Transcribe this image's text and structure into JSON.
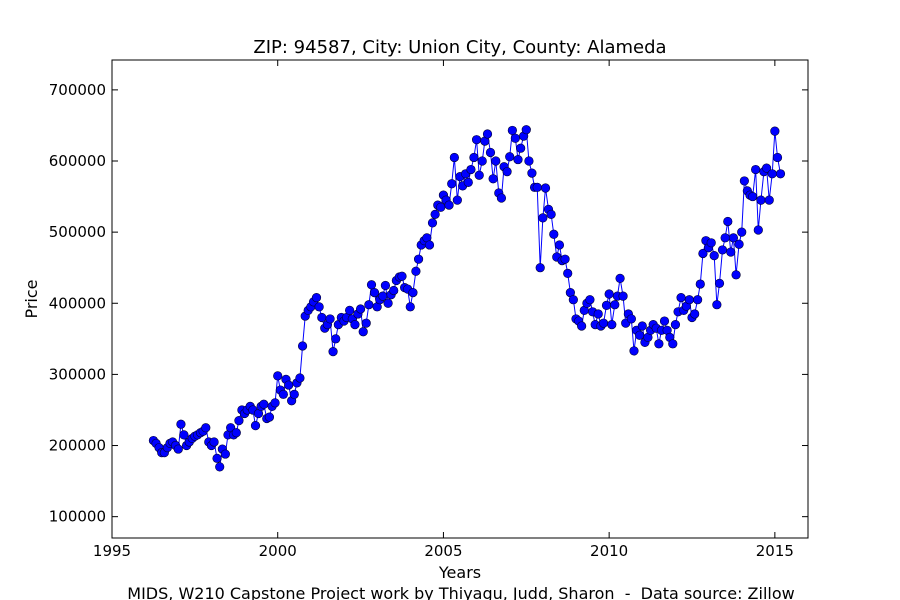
{
  "chart_data": {
    "type": "line",
    "title": "ZIP: 94587, City: Union City, County: Alameda",
    "xlabel": "Years",
    "ylabel": "Price",
    "footer": "MIDS, W210 Capstone Project work by Thiyagu, Judd, Sharon  -  Data source: Zillow",
    "xlim": [
      1995,
      2016
    ],
    "ylim": [
      70000,
      742000
    ],
    "xticks": [
      1995,
      2000,
      2005,
      2010,
      2015
    ],
    "yticks": [
      100000,
      200000,
      300000,
      400000,
      500000,
      600000,
      700000
    ],
    "x": [
      1996.25,
      1996.33,
      1996.42,
      1996.5,
      1996.58,
      1996.67,
      1996.75,
      1996.83,
      1996.92,
      1997.0,
      1997.08,
      1997.17,
      1997.25,
      1997.33,
      1997.42,
      1997.5,
      1997.58,
      1997.67,
      1997.75,
      1997.83,
      1997.92,
      1998.0,
      1998.08,
      1998.17,
      1998.25,
      1998.33,
      1998.42,
      1998.5,
      1998.58,
      1998.67,
      1998.75,
      1998.83,
      1998.92,
      1999.0,
      1999.08,
      1999.17,
      1999.25,
      1999.33,
      1999.42,
      1999.5,
      1999.58,
      1999.67,
      1999.75,
      1999.83,
      1999.92,
      2000.0,
      2000.08,
      2000.17,
      2000.25,
      2000.33,
      2000.42,
      2000.5,
      2000.58,
      2000.67,
      2000.75,
      2000.83,
      2000.92,
      2001.0,
      2001.08,
      2001.17,
      2001.25,
      2001.33,
      2001.42,
      2001.5,
      2001.58,
      2001.67,
      2001.75,
      2001.83,
      2001.92,
      2002.0,
      2002.08,
      2002.17,
      2002.25,
      2002.33,
      2002.42,
      2002.5,
      2002.58,
      2002.67,
      2002.75,
      2002.83,
      2002.92,
      2003.0,
      2003.08,
      2003.17,
      2003.25,
      2003.33,
      2003.42,
      2003.5,
      2003.58,
      2003.67,
      2003.75,
      2003.83,
      2003.92,
      2004.0,
      2004.08,
      2004.17,
      2004.25,
      2004.33,
      2004.42,
      2004.5,
      2004.58,
      2004.67,
      2004.75,
      2004.83,
      2004.92,
      2005.0,
      2005.08,
      2005.17,
      2005.25,
      2005.33,
      2005.42,
      2005.5,
      2005.58,
      2005.67,
      2005.75,
      2005.83,
      2005.92,
      2006.0,
      2006.08,
      2006.17,
      2006.25,
      2006.33,
      2006.42,
      2006.5,
      2006.58,
      2006.67,
      2006.75,
      2006.83,
      2006.92,
      2007.0,
      2007.08,
      2007.17,
      2007.25,
      2007.33,
      2007.42,
      2007.5,
      2007.58,
      2007.67,
      2007.75,
      2007.83,
      2007.92,
      2008.0,
      2008.08,
      2008.17,
      2008.25,
      2008.33,
      2008.42,
      2008.5,
      2008.58,
      2008.67,
      2008.75,
      2008.83,
      2008.92,
      2009.0,
      2009.08,
      2009.17,
      2009.25,
      2009.33,
      2009.42,
      2009.5,
      2009.58,
      2009.67,
      2009.75,
      2009.83,
      2009.92,
      2010.0,
      2010.08,
      2010.17,
      2010.25,
      2010.33,
      2010.42,
      2010.5,
      2010.58,
      2010.67,
      2010.75,
      2010.83,
      2010.92,
      2011.0,
      2011.08,
      2011.17,
      2011.25,
      2011.33,
      2011.42,
      2011.5,
      2011.58,
      2011.67,
      2011.75,
      2011.83,
      2011.92,
      2012.0,
      2012.08,
      2012.17,
      2012.25,
      2012.33,
      2012.42,
      2012.5,
      2012.58,
      2012.67,
      2012.75,
      2012.83,
      2012.92,
      2013.0,
      2013.08,
      2013.17,
      2013.25,
      2013.33,
      2013.42,
      2013.5,
      2013.58,
      2013.67,
      2013.75,
      2013.83,
      2013.92,
      2014.0,
      2014.08,
      2014.17,
      2014.25,
      2014.33,
      2014.42,
      2014.5,
      2014.58,
      2014.67,
      2014.75,
      2014.83,
      2014.92,
      2015.0,
      2015.08,
      2015.17
    ],
    "series": [
      {
        "color": "#0000ff",
        "values": [
          207000,
          203000,
          197000,
          190000,
          190000,
          197000,
          203000,
          205000,
          200000,
          195000,
          230000,
          215000,
          200000,
          205000,
          210000,
          213000,
          215000,
          218000,
          220000,
          225000,
          205000,
          200000,
          205000,
          182000,
          170000,
          195000,
          188000,
          215000,
          225000,
          215000,
          218000,
          235000,
          250000,
          245000,
          250000,
          255000,
          250000,
          228000,
          245000,
          255000,
          258000,
          238000,
          240000,
          255000,
          260000,
          298000,
          278000,
          272000,
          293000,
          285000,
          263000,
          272000,
          288000,
          295000,
          340000,
          382000,
          390000,
          395000,
          402000,
          408000,
          395000,
          380000,
          365000,
          370000,
          378000,
          332000,
          350000,
          370000,
          380000,
          375000,
          380000,
          390000,
          378000,
          370000,
          385000,
          392000,
          360000,
          372000,
          398000,
          426000,
          415000,
          395000,
          405000,
          410000,
          425000,
          400000,
          412000,
          418000,
          432000,
          437000,
          438000,
          422000,
          420000,
          395000,
          415000,
          445000,
          462000,
          482000,
          488000,
          492000,
          482000,
          513000,
          525000,
          538000,
          535000,
          552000,
          545000,
          538000,
          568000,
          605000,
          545000,
          578000,
          565000,
          582000,
          570000,
          588000,
          605000,
          630000,
          580000,
          600000,
          628000,
          638000,
          612000,
          575000,
          600000,
          555000,
          548000,
          592000,
          585000,
          606000,
          643000,
          632000,
          602000,
          618000,
          635000,
          644000,
          600000,
          583000,
          563000,
          563000,
          450000,
          520000,
          562000,
          532000,
          525000,
          497000,
          465000,
          482000,
          460000,
          462000,
          442000,
          415000,
          405000,
          378000,
          375000,
          368000,
          390000,
          400000,
          405000,
          388000,
          370000,
          385000,
          368000,
          372000,
          397000,
          413000,
          370000,
          398000,
          410000,
          435000,
          410000,
          372000,
          385000,
          378000,
          333000,
          362000,
          355000,
          368000,
          345000,
          352000,
          362000,
          370000,
          365000,
          343000,
          362000,
          375000,
          362000,
          352000,
          343000,
          370000,
          388000,
          408000,
          390000,
          396000,
          405000,
          380000,
          385000,
          405000,
          427000,
          470000,
          488000,
          478000,
          485000,
          467000,
          398000,
          428000,
          475000,
          492000,
          515000,
          472000,
          492000,
          440000,
          483000,
          500000,
          572000,
          558000,
          552000,
          550000,
          588000,
          503000,
          545000,
          585000,
          590000,
          545000,
          582000,
          642000,
          605000,
          582000
        ]
      }
    ]
  }
}
